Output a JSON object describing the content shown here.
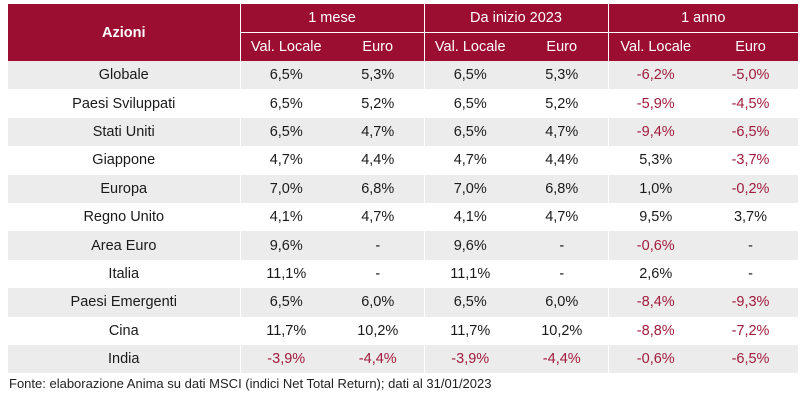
{
  "chart_data": {
    "type": "table",
    "header_label": "Azioni",
    "groups": [
      "1 mese",
      "Da inizio 2023",
      "1 anno"
    ],
    "subheaders": [
      "Val. Locale",
      "Euro"
    ],
    "colors": {
      "header_bg": "#9b0e32",
      "negative": "#a11b3c",
      "stripe": "#ececec"
    },
    "rows": [
      {
        "country": "Globale",
        "values": [
          "6,5%",
          "5,3%",
          "6,5%",
          "5,3%",
          "-6,2%",
          "-5,0%"
        ]
      },
      {
        "country": "Paesi Sviluppati",
        "values": [
          "6,5%",
          "5,2%",
          "6,5%",
          "5,2%",
          "-5,9%",
          "-4,5%"
        ]
      },
      {
        "country": "Stati Uniti",
        "values": [
          "6,5%",
          "4,7%",
          "6,5%",
          "4,7%",
          "-9,4%",
          "-6,5%"
        ]
      },
      {
        "country": "Giappone",
        "values": [
          "4,7%",
          "4,4%",
          "4,7%",
          "4,4%",
          "5,3%",
          "-3,7%"
        ]
      },
      {
        "country": "Europa",
        "values": [
          "7,0%",
          "6,8%",
          "7,0%",
          "6,8%",
          "1,0%",
          "-0,2%"
        ]
      },
      {
        "country": "Regno Unito",
        "values": [
          "4,1%",
          "4,7%",
          "4,1%",
          "4,7%",
          "9,5%",
          "3,7%"
        ]
      },
      {
        "country": "Area Euro",
        "values": [
          "9,6%",
          "-",
          "9,6%",
          "-",
          "-0,6%",
          "-"
        ]
      },
      {
        "country": "Italia",
        "values": [
          "11,1%",
          "-",
          "11,1%",
          "-",
          "2,6%",
          "-"
        ]
      },
      {
        "country": "Paesi Emergenti",
        "values": [
          "6,5%",
          "6,0%",
          "6,5%",
          "6,0%",
          "-8,4%",
          "-9,3%"
        ]
      },
      {
        "country": "Cina",
        "values": [
          "11,7%",
          "10,2%",
          "11,7%",
          "10,2%",
          "-8,8%",
          "-7,2%"
        ]
      },
      {
        "country": "India",
        "values": [
          "-3,9%",
          "-4,4%",
          "-3,9%",
          "-4,4%",
          "-0,6%",
          "-6,5%"
        ]
      }
    ]
  },
  "source": "Fonte: elaborazione Anima su dati MSCI (indici Net Total Return); dati al 31/01/2023"
}
